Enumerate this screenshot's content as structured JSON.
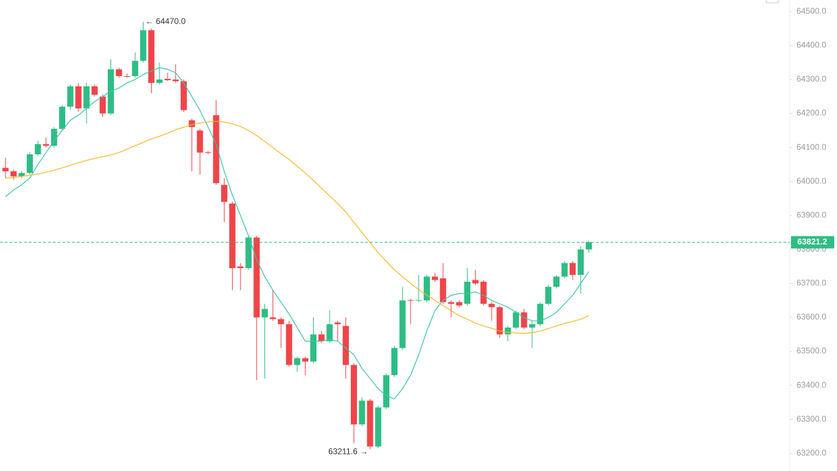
{
  "chart_data": {
    "type": "candlestick",
    "open": [
      64040,
      64030,
      64015,
      64025,
      64080,
      64110,
      64105,
      64155,
      64220,
      64280,
      64215,
      64280,
      64250,
      64200,
      64330,
      64310,
      64310,
      64355,
      64445,
      64290,
      64302,
      64300,
      64295,
      64180,
      64150,
      64086,
      64195,
      63990,
      63935,
      63750,
      63745,
      63835,
      63600,
      63600,
      63595,
      63580,
      63460,
      63480,
      63470,
      63550,
      63530,
      63585,
      63575,
      63460,
      63285,
      63355,
      63220,
      63335,
      63430,
      63510,
      63651,
      63649,
      63650,
      63720,
      63715,
      63645,
      63645,
      63640,
      63710,
      63705,
      63640,
      63630,
      63550,
      63570,
      63615,
      63570,
      63580,
      63640,
      63690,
      63720,
      63760,
      63725,
      63800
    ],
    "high": [
      64070,
      64035,
      64030,
      64085,
      64120,
      64130,
      64160,
      64225,
      64285,
      64290,
      64290,
      64285,
      64255,
      64360,
      64335,
      64318,
      64380,
      64470,
      64450,
      64350,
      64320,
      64345,
      64300,
      64185,
      64155,
      64090,
      64240,
      64010,
      63940,
      63760,
      63840,
      63840,
      63640,
      63680,
      63600,
      63590,
      63485,
      63485,
      63600,
      63560,
      63620,
      63590,
      63600,
      63465,
      63365,
      63360,
      63340,
      63435,
      63515,
      63690,
      63655,
      63725,
      63725,
      63730,
      63760,
      63650,
      63650,
      63745,
      63740,
      63710,
      63645,
      63635,
      63575,
      63620,
      63625,
      63590,
      63645,
      63695,
      63725,
      63765,
      63765,
      63810,
      63825
    ],
    "low": [
      64010,
      64005,
      64010,
      64020,
      64075,
      64100,
      64100,
      64150,
      64210,
      64205,
      64170,
      64250,
      64190,
      64195,
      64305,
      64305,
      64305,
      64350,
      64260,
      64285,
      64295,
      64290,
      64205,
      64030,
      64020,
      64080,
      63990,
      63880,
      63680,
      63680,
      63740,
      63415,
      63420,
      63590,
      63510,
      63455,
      63440,
      63430,
      63465,
      63525,
      63525,
      63530,
      63420,
      63230,
      63280,
      63211.6,
      63215,
      63330,
      63425,
      63505,
      63580,
      63645,
      63645,
      63705,
      63640,
      63600,
      63630,
      63635,
      63695,
      63635,
      63590,
      63540,
      63530,
      63565,
      63565,
      63510,
      63575,
      63635,
      63685,
      63715,
      63710,
      63670,
      63790
    ],
    "close": [
      64030,
      64015,
      64025,
      64080,
      64110,
      64105,
      64155,
      64220,
      64280,
      64215,
      64280,
      64255,
      64200,
      64330,
      64310,
      64308,
      64355,
      64445,
      64290,
      64300,
      64298,
      64295,
      64210,
      64160,
      64085,
      64084,
      63995,
      63940,
      63745,
      63745,
      63835,
      63600,
      63625,
      63595,
      63580,
      63460,
      63480,
      63470,
      63550,
      63530,
      63580,
      63580,
      63460,
      63285,
      63355,
      63220,
      63335,
      63430,
      63510,
      63650,
      63649,
      63651,
      63720,
      63710,
      63645,
      63640,
      63635,
      63705,
      63700,
      63640,
      63630,
      63550,
      63570,
      63615,
      63570,
      63580,
      63640,
      63690,
      63720,
      63760,
      63725,
      63800,
      63821.2
    ],
    "up_color": "#2ebd85",
    "down_color": "#ef454a",
    "ma_lines": [
      {
        "color": "#3cc6a6",
        "values": [
          63955,
          63975,
          63990,
          64010,
          64050,
          64085,
          64120,
          64150,
          64180,
          64195,
          64215,
          64235,
          64250,
          64265,
          64275,
          64290,
          64300,
          64315,
          64325,
          64335,
          64330,
          64320,
          64290,
          64250,
          64210,
          64160,
          64110,
          64030,
          63960,
          63900,
          63840,
          63770,
          63720,
          63680,
          63645,
          63610,
          63570,
          63530,
          63530,
          63530,
          63535,
          63530,
          63510,
          63490,
          63450,
          63420,
          63390,
          63370,
          63360,
          63390,
          63430,
          63490,
          63560,
          63620,
          63650,
          63665,
          63670,
          63670,
          63675,
          63665,
          63650,
          63640,
          63630,
          63615,
          63600,
          63590,
          63590,
          63600,
          63615,
          63640,
          63665,
          63700,
          63735
        ]
      },
      {
        "color": "#f5b82e",
        "values": [
          64010,
          64012,
          64015,
          64018,
          64022,
          64027,
          64033,
          64040,
          64048,
          64055,
          64062,
          64068,
          64073,
          64078,
          64085,
          64095,
          64105,
          64115,
          64125,
          64133,
          64142,
          64152,
          64160,
          64167,
          64172,
          64175,
          64177,
          64175,
          64170,
          64162,
          64150,
          64135,
          64118,
          64100,
          64082,
          64065,
          64045,
          64025,
          64003,
          63980,
          63958,
          63935,
          63910,
          63880,
          63850,
          63820,
          63790,
          63765,
          63740,
          63720,
          63700,
          63682,
          63665,
          63650,
          63635,
          63620,
          63605,
          63595,
          63583,
          63575,
          63568,
          63560,
          63556,
          63554,
          63553,
          63555,
          63560,
          63567,
          63575,
          63582,
          63588,
          63595,
          63605
        ]
      }
    ],
    "ylim": [
      63148,
      64534
    ],
    "yticks": [
      {
        "value": 63200,
        "label": "63200.0"
      },
      {
        "value": 63300,
        "label": "63300.0"
      },
      {
        "value": 63400,
        "label": "63400.0"
      },
      {
        "value": 63500,
        "label": "63500.0"
      },
      {
        "value": 63600,
        "label": "63600.0"
      },
      {
        "value": 63700,
        "label": "63700.0"
      },
      {
        "value": 63800,
        "label": "63800.0"
      },
      {
        "value": 63900,
        "label": "63900.0"
      },
      {
        "value": 64000,
        "label": "64000.0"
      },
      {
        "value": 64100,
        "label": "64100.0"
      },
      {
        "value": 64200,
        "label": "64200.0"
      },
      {
        "value": 64300,
        "label": "64300.0"
      },
      {
        "value": 64400,
        "label": "64400.0"
      },
      {
        "value": 64500,
        "label": "64500.0"
      }
    ],
    "last_price": {
      "value": 63821.2,
      "label": "63821.2"
    },
    "annotations": [
      {
        "value": 64470,
        "label": "← 64470.0"
      },
      {
        "value": 63211.6,
        "label": "63211.6 →"
      }
    ]
  }
}
